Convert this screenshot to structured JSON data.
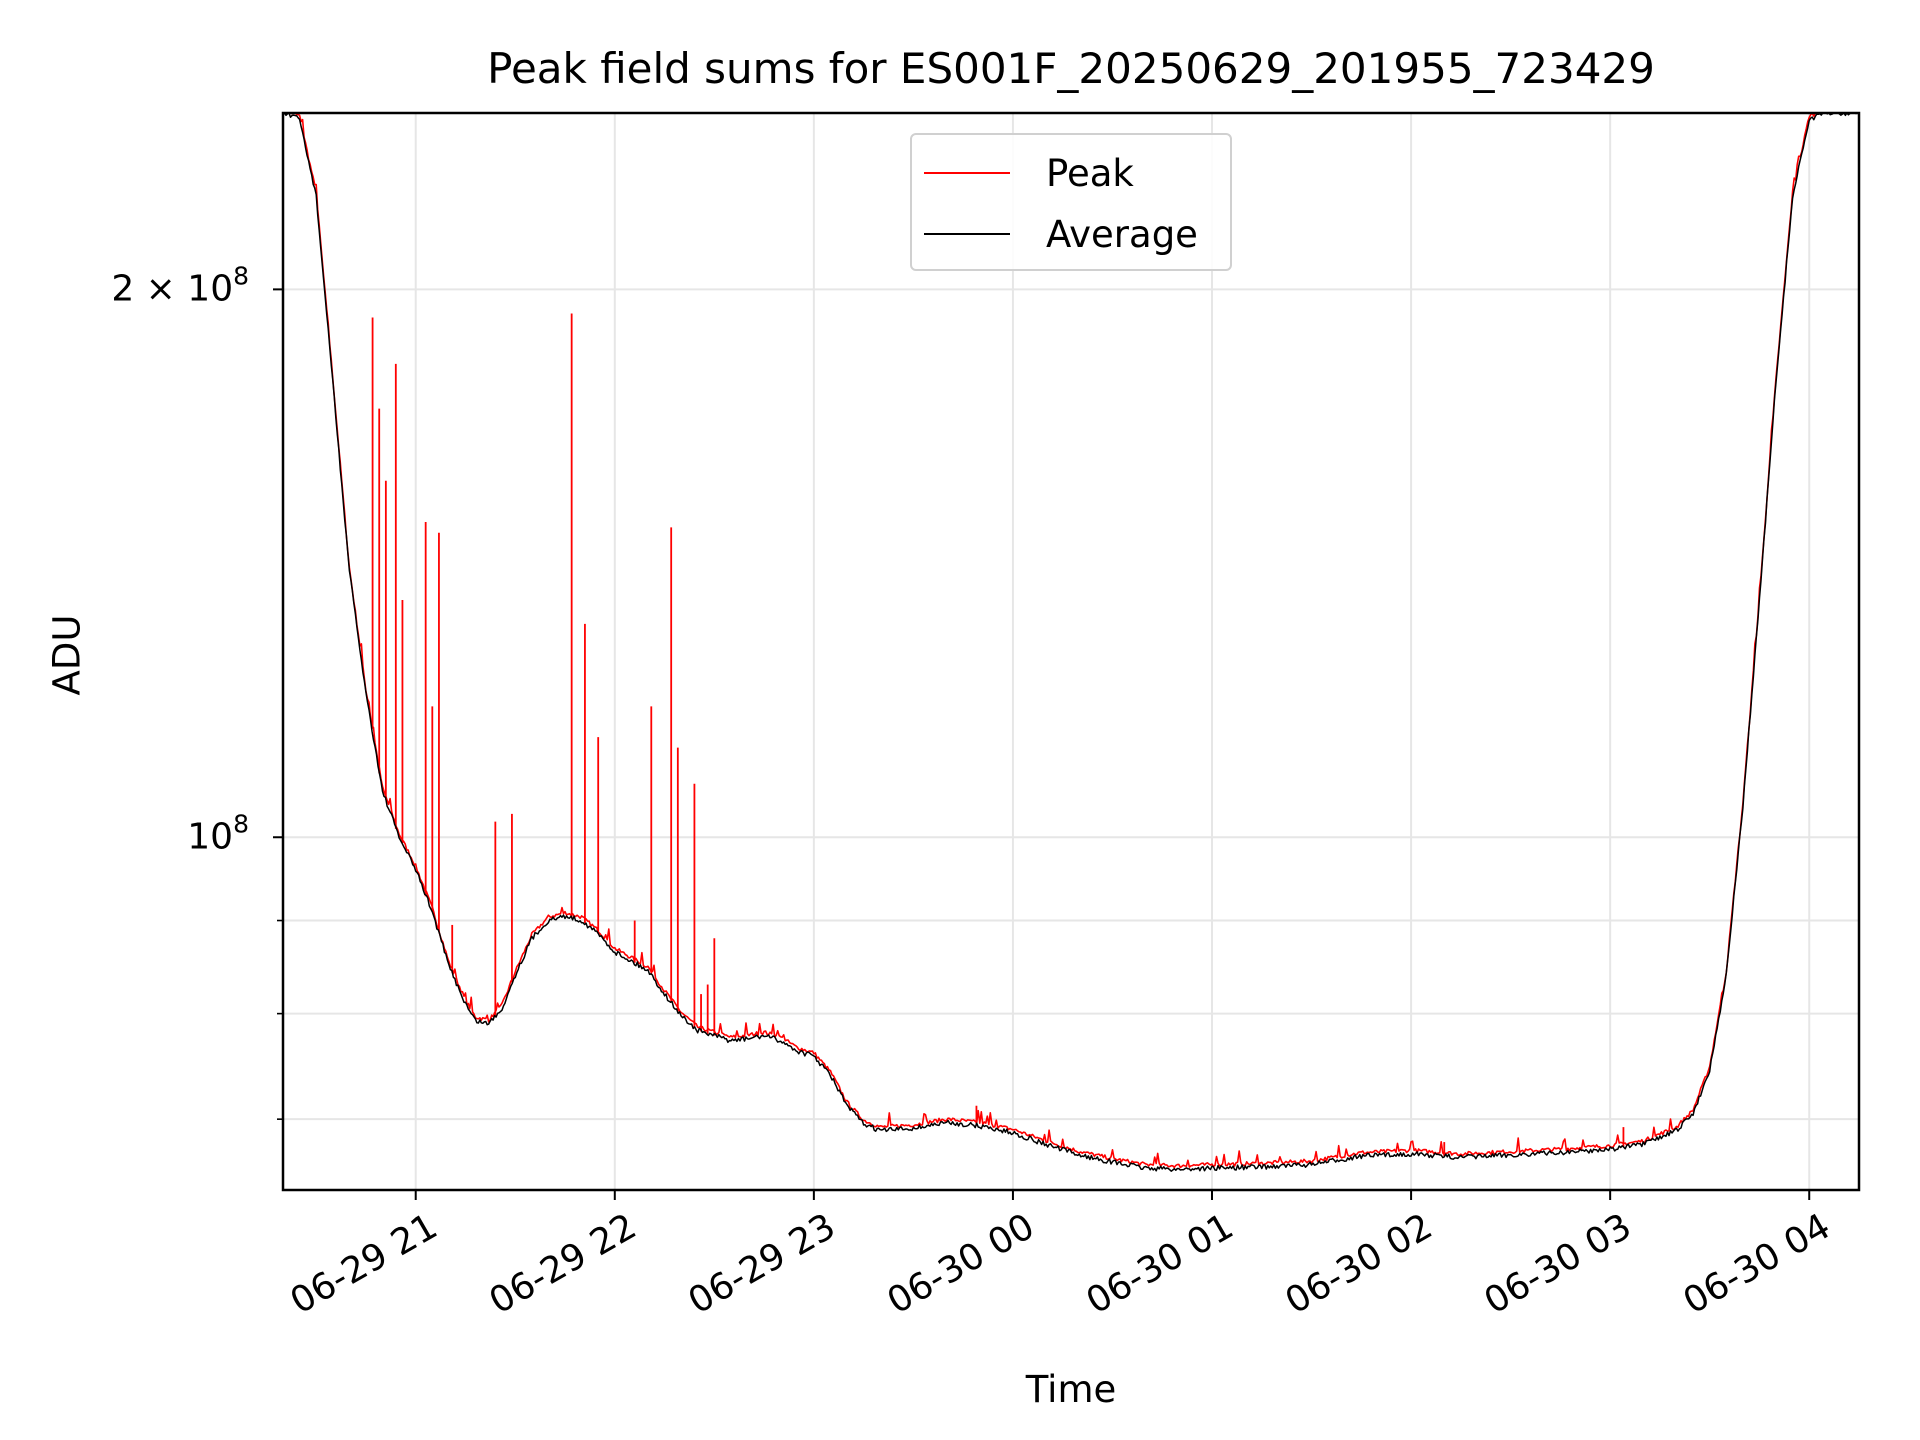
{
  "chart_data": {
    "type": "line",
    "title": "Peak field sums for ES001F_20250629_201955_723429",
    "xlabel": "Time",
    "ylabel": "ADU",
    "y_scale": "log",
    "xlim": [
      "2025-06-29 20:20",
      "2025-06-30 04:15"
    ],
    "ylim": [
      64000000,
      250000000
    ],
    "x_ticks": [
      "06-29 21",
      "06-29 22",
      "06-29 23",
      "06-30 00",
      "06-30 01",
      "06-30 02",
      "06-30 03",
      "06-30 04"
    ],
    "y_ticks": [
      {
        "value": 100000000,
        "base": "10",
        "exp": "8",
        "mantissa": ""
      },
      {
        "value": 200000000,
        "base": "10",
        "exp": "8",
        "mantissa": "2 × "
      }
    ],
    "grid": true,
    "legend_position": "top-center",
    "series": [
      {
        "name": "Average",
        "color": "#000000",
        "x": [
          "2025-06-29 20:20",
          "2025-06-29 20:25",
          "2025-06-29 20:30",
          "2025-06-29 20:35",
          "2025-06-29 20:40",
          "2025-06-29 20:45",
          "2025-06-29 20:50",
          "2025-06-29 20:55",
          "2025-06-29 21:00",
          "2025-06-29 21:05",
          "2025-06-29 21:10",
          "2025-06-29 21:15",
          "2025-06-29 21:18",
          "2025-06-29 21:22",
          "2025-06-29 21:26",
          "2025-06-29 21:30",
          "2025-06-29 21:35",
          "2025-06-29 21:40",
          "2025-06-29 21:45",
          "2025-06-29 21:50",
          "2025-06-29 21:55",
          "2025-06-29 22:00",
          "2025-06-29 22:05",
          "2025-06-29 22:10",
          "2025-06-29 22:15",
          "2025-06-29 22:20",
          "2025-06-29 22:25",
          "2025-06-29 22:30",
          "2025-06-29 22:35",
          "2025-06-29 22:40",
          "2025-06-29 22:45",
          "2025-06-29 22:50",
          "2025-06-29 22:55",
          "2025-06-29 23:00",
          "2025-06-29 23:05",
          "2025-06-29 23:10",
          "2025-06-29 23:15",
          "2025-06-29 23:20",
          "2025-06-29 23:30",
          "2025-06-29 23:40",
          "2025-06-29 23:50",
          "2025-06-30 00:00",
          "2025-06-30 00:10",
          "2025-06-30 00:20",
          "2025-06-30 00:30",
          "2025-06-30 00:40",
          "2025-06-30 00:50",
          "2025-06-30 01:00",
          "2025-06-30 01:15",
          "2025-06-30 01:30",
          "2025-06-30 01:45",
          "2025-06-30 02:00",
          "2025-06-30 02:15",
          "2025-06-30 02:30",
          "2025-06-30 02:45",
          "2025-06-30 03:00",
          "2025-06-30 03:10",
          "2025-06-30 03:20",
          "2025-06-30 03:25",
          "2025-06-30 03:30",
          "2025-06-30 03:35",
          "2025-06-30 03:40",
          "2025-06-30 03:45",
          "2025-06-30 03:50",
          "2025-06-30 03:55",
          "2025-06-30 04:00",
          "2025-06-30 04:05",
          "2025-06-30 04:10",
          "2025-06-30 04:15"
        ],
        "y": [
          250000000,
          248000000,
          225000000,
          178000000,
          140000000,
          120000000,
          106000000,
          100000000,
          96000000,
          91000000,
          85000000,
          81000000,
          79300000,
          79000000,
          80500000,
          84000000,
          88000000,
          90000000,
          90500000,
          90000000,
          88500000,
          86500000,
          85500000,
          84500000,
          82000000,
          79800000,
          78300000,
          77800000,
          77300000,
          77500000,
          77800000,
          77300000,
          76300000,
          75800000,
          74000000,
          71200000,
          69600000,
          69000000,
          69200000,
          69700000,
          69400000,
          68800000,
          67800000,
          66900000,
          66300000,
          65800000,
          65700000,
          65800000,
          65900000,
          66100000,
          66800000,
          67000000,
          66700000,
          66900000,
          67100000,
          67400000,
          67800000,
          69000000,
          70500000,
          74500000,
          84000000,
          104000000,
          135000000,
          178000000,
          225000000,
          248000000,
          250000000,
          250000000,
          250000000
        ]
      },
      {
        "name": "Peak",
        "color": "#ff0000",
        "spikes": [
          {
            "x": "2025-06-29 20:47",
            "y": 193000000
          },
          {
            "x": "2025-06-29 20:49",
            "y": 172000000
          },
          {
            "x": "2025-06-29 20:51",
            "y": 157000000
          },
          {
            "x": "2025-06-29 20:54",
            "y": 182000000
          },
          {
            "x": "2025-06-29 20:56",
            "y": 135000000
          },
          {
            "x": "2025-06-29 21:03",
            "y": 149000000
          },
          {
            "x": "2025-06-29 21:05",
            "y": 118000000
          },
          {
            "x": "2025-06-29 21:07",
            "y": 147000000
          },
          {
            "x": "2025-06-29 21:11",
            "y": 89500000
          },
          {
            "x": "2025-06-29 21:24",
            "y": 102000000
          },
          {
            "x": "2025-06-29 21:29",
            "y": 103000000
          },
          {
            "x": "2025-06-29 21:47",
            "y": 194000000
          },
          {
            "x": "2025-06-29 21:51",
            "y": 131000000
          },
          {
            "x": "2025-06-29 21:55",
            "y": 113500000
          },
          {
            "x": "2025-06-29 22:06",
            "y": 90000000
          },
          {
            "x": "2025-06-29 22:11",
            "y": 118000000
          },
          {
            "x": "2025-06-29 22:17",
            "y": 148000000
          },
          {
            "x": "2025-06-29 22:19",
            "y": 112000000
          },
          {
            "x": "2025-06-29 22:24",
            "y": 107000000
          },
          {
            "x": "2025-06-29 22:26",
            "y": 82000000
          },
          {
            "x": "2025-06-29 22:28",
            "y": 83000000
          },
          {
            "x": "2025-06-29 22:30",
            "y": 88000000
          },
          {
            "x": "2025-06-29 23:49",
            "y": 71200000
          },
          {
            "x": "2025-06-30 02:10",
            "y": 68000000
          },
          {
            "x": "2025-06-30 03:04",
            "y": 69300000
          }
        ]
      }
    ]
  }
}
